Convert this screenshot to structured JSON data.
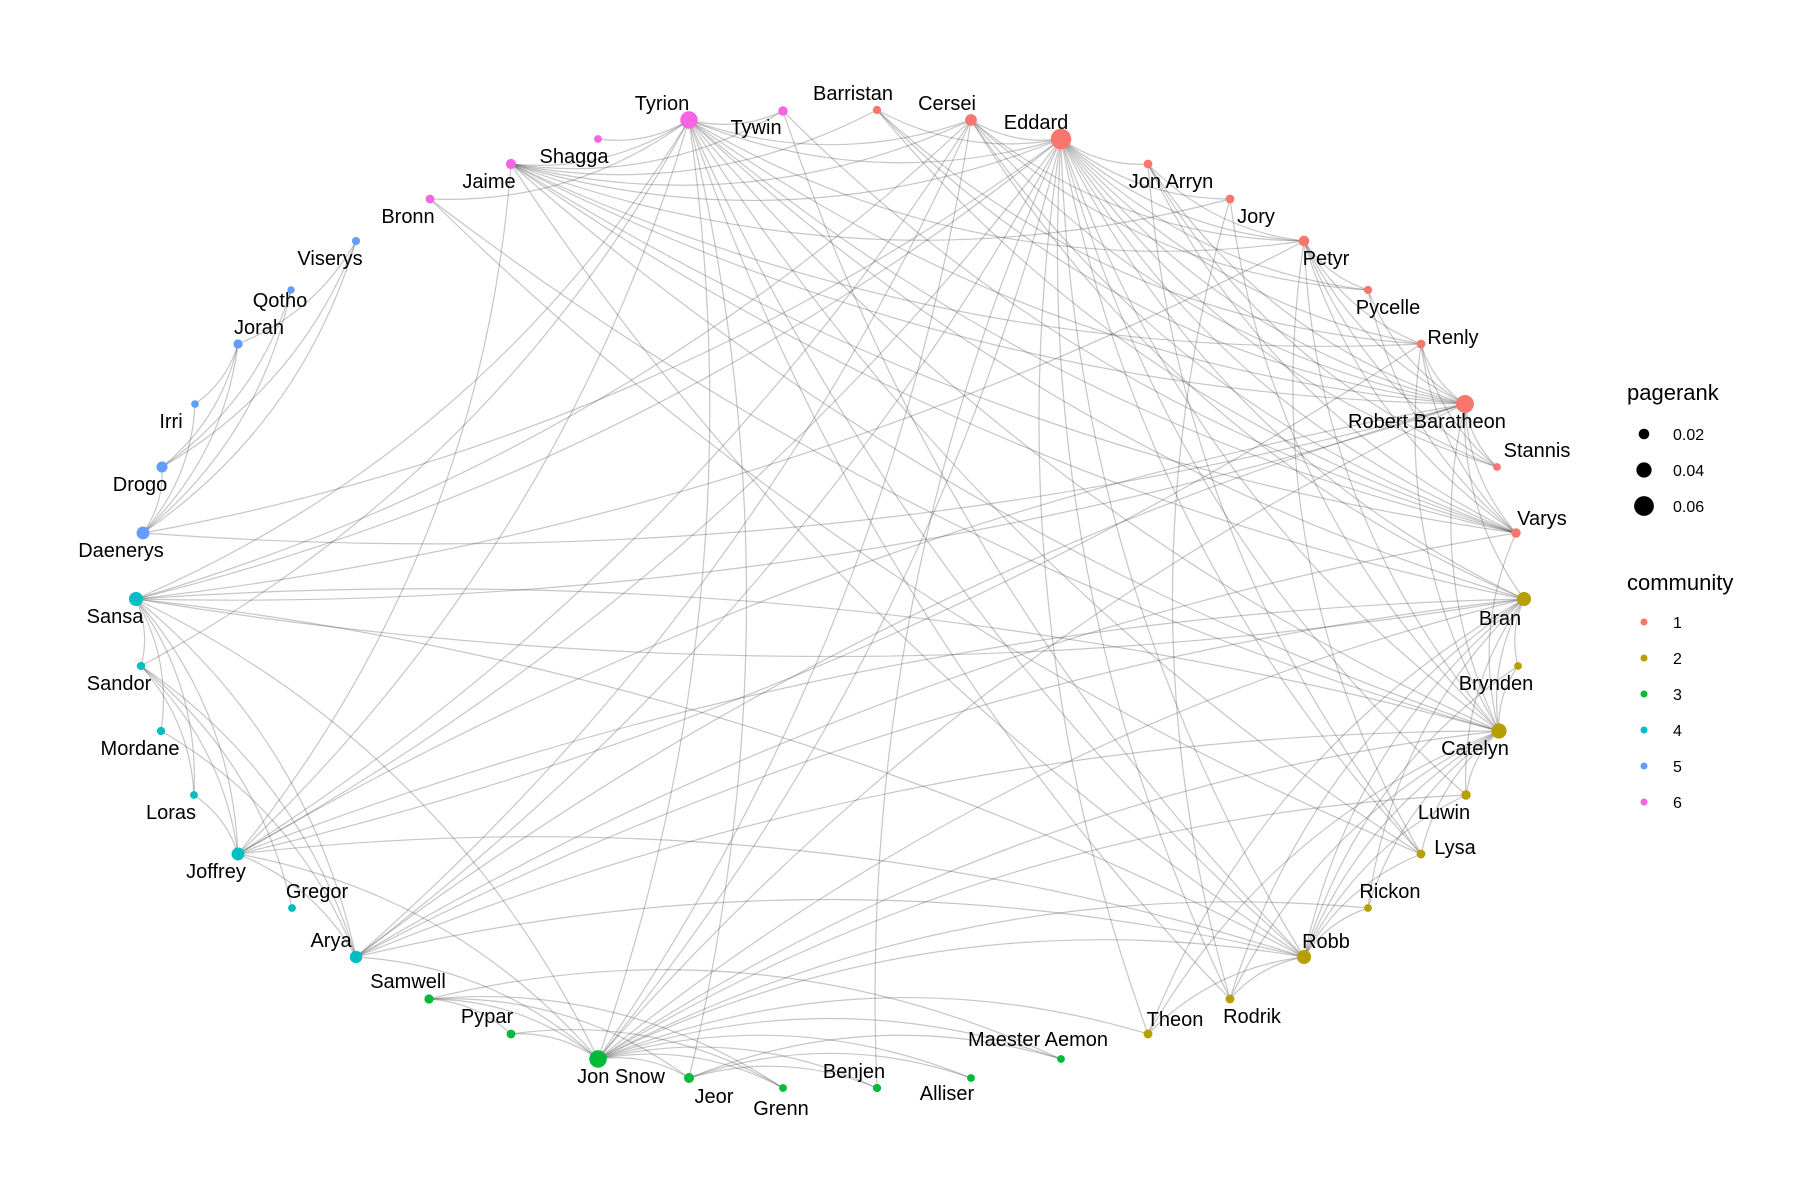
{
  "legend": {
    "pagerank_title": "pagerank",
    "pagerank_entries": [
      {
        "label": "0.02",
        "value": 0.02
      },
      {
        "label": "0.04",
        "value": 0.04
      },
      {
        "label": "0.06",
        "value": 0.06
      }
    ],
    "community_title": "community",
    "community_entries": [
      {
        "label": "1",
        "color": "#F8766D"
      },
      {
        "label": "2",
        "color": "#B79F00"
      },
      {
        "label": "3",
        "color": "#00BA38"
      },
      {
        "label": "4",
        "color": "#00BFC4"
      },
      {
        "label": "5",
        "color": "#619CFF"
      },
      {
        "label": "6",
        "color": "#F564E3"
      }
    ]
  },
  "nodes": [
    {
      "name": "Eddard",
      "community": 1,
      "pagerank": 0.063
    },
    {
      "name": "Jon Arryn",
      "community": 1,
      "pagerank": 0.012
    },
    {
      "name": "Jory",
      "community": 1,
      "pagerank": 0.012
    },
    {
      "name": "Petyr",
      "community": 1,
      "pagerank": 0.02
    },
    {
      "name": "Pycelle",
      "community": 1,
      "pagerank": 0.01
    },
    {
      "name": "Renly",
      "community": 1,
      "pagerank": 0.012
    },
    {
      "name": "Robert Baratheon",
      "community": 1,
      "pagerank": 0.052
    },
    {
      "name": "Stannis",
      "community": 1,
      "pagerank": 0.008
    },
    {
      "name": "Varys",
      "community": 1,
      "pagerank": 0.015
    },
    {
      "name": "Bran",
      "community": 2,
      "pagerank": 0.035
    },
    {
      "name": "Brynden",
      "community": 2,
      "pagerank": 0.008
    },
    {
      "name": "Catelyn",
      "community": 2,
      "pagerank": 0.04
    },
    {
      "name": "Luwin",
      "community": 2,
      "pagerank": 0.015
    },
    {
      "name": "Lysa",
      "community": 2,
      "pagerank": 0.012
    },
    {
      "name": "Rickon",
      "community": 2,
      "pagerank": 0.008
    },
    {
      "name": "Robb",
      "community": 2,
      "pagerank": 0.035
    },
    {
      "name": "Rodrik",
      "community": 2,
      "pagerank": 0.012
    },
    {
      "name": "Theon",
      "community": 2,
      "pagerank": 0.013
    },
    {
      "name": "Maester Aemon",
      "community": 3,
      "pagerank": 0.008
    },
    {
      "name": "Alliser",
      "community": 3,
      "pagerank": 0.008
    },
    {
      "name": "Benjen",
      "community": 3,
      "pagerank": 0.01
    },
    {
      "name": "Grenn",
      "community": 3,
      "pagerank": 0.008
    },
    {
      "name": "Jeor",
      "community": 3,
      "pagerank": 0.017
    },
    {
      "name": "Jon Snow",
      "community": 3,
      "pagerank": 0.05
    },
    {
      "name": "Pypar",
      "community": 3,
      "pagerank": 0.012
    },
    {
      "name": "Samwell",
      "community": 3,
      "pagerank": 0.014
    },
    {
      "name": "Arya",
      "community": 4,
      "pagerank": 0.028
    },
    {
      "name": "Gregor",
      "community": 4,
      "pagerank": 0.008
    },
    {
      "name": "Joffrey",
      "community": 4,
      "pagerank": 0.03
    },
    {
      "name": "Loras",
      "community": 4,
      "pagerank": 0.008
    },
    {
      "name": "Mordane",
      "community": 4,
      "pagerank": 0.01
    },
    {
      "name": "Sandor",
      "community": 4,
      "pagerank": 0.01
    },
    {
      "name": "Sansa",
      "community": 4,
      "pagerank": 0.035
    },
    {
      "name": "Daenerys",
      "community": 5,
      "pagerank": 0.03
    },
    {
      "name": "Drogo",
      "community": 5,
      "pagerank": 0.022
    },
    {
      "name": "Irri",
      "community": 5,
      "pagerank": 0.007
    },
    {
      "name": "Jorah",
      "community": 5,
      "pagerank": 0.014
    },
    {
      "name": "Qotho",
      "community": 5,
      "pagerank": 0.006
    },
    {
      "name": "Viserys",
      "community": 5,
      "pagerank": 0.009
    },
    {
      "name": "Bronn",
      "community": 6,
      "pagerank": 0.012
    },
    {
      "name": "Jaime",
      "community": 6,
      "pagerank": 0.018
    },
    {
      "name": "Shagga",
      "community": 6,
      "pagerank": 0.008
    },
    {
      "name": "Tyrion",
      "community": 6,
      "pagerank": 0.05
    },
    {
      "name": "Tywin",
      "community": 6,
      "pagerank": 0.015
    },
    {
      "name": "Barristan",
      "community": 1,
      "pagerank": 0.01
    },
    {
      "name": "Cersei",
      "community": 1,
      "pagerank": 0.025
    }
  ],
  "edges": [
    [
      "Eddard",
      "Robert Baratheon"
    ],
    [
      "Eddard",
      "Jon Arryn"
    ],
    [
      "Eddard",
      "Jory"
    ],
    [
      "Eddard",
      "Petyr"
    ],
    [
      "Eddard",
      "Pycelle"
    ],
    [
      "Eddard",
      "Renly"
    ],
    [
      "Eddard",
      "Varys"
    ],
    [
      "Eddard",
      "Stannis"
    ],
    [
      "Eddard",
      "Cersei"
    ],
    [
      "Eddard",
      "Barristan"
    ],
    [
      "Eddard",
      "Catelyn"
    ],
    [
      "Eddard",
      "Bran"
    ],
    [
      "Eddard",
      "Robb"
    ],
    [
      "Eddard",
      "Luwin"
    ],
    [
      "Eddard",
      "Rodrik"
    ],
    [
      "Eddard",
      "Sansa"
    ],
    [
      "Eddard",
      "Arya"
    ],
    [
      "Eddard",
      "Joffrey"
    ],
    [
      "Eddard",
      "Jon Snow"
    ],
    [
      "Eddard",
      "Benjen"
    ],
    [
      "Eddard",
      "Tyrion"
    ],
    [
      "Eddard",
      "Jaime"
    ],
    [
      "Eddard",
      "Daenerys"
    ],
    [
      "Eddard",
      "Theon"
    ],
    [
      "Eddard",
      "Lysa"
    ],
    [
      "Robert Baratheon",
      "Cersei"
    ],
    [
      "Robert Baratheon",
      "Jon Arryn"
    ],
    [
      "Robert Baratheon",
      "Renly"
    ],
    [
      "Robert Baratheon",
      "Stannis"
    ],
    [
      "Robert Baratheon",
      "Barristan"
    ],
    [
      "Robert Baratheon",
      "Varys"
    ],
    [
      "Robert Baratheon",
      "Joffrey"
    ],
    [
      "Robert Baratheon",
      "Jaime"
    ],
    [
      "Robert Baratheon",
      "Tyrion"
    ],
    [
      "Robert Baratheon",
      "Sansa"
    ],
    [
      "Robert Baratheon",
      "Arya"
    ],
    [
      "Robert Baratheon",
      "Catelyn"
    ],
    [
      "Robert Baratheon",
      "Bran"
    ],
    [
      "Robert Baratheon",
      "Petyr"
    ],
    [
      "Robert Baratheon",
      "Pycelle"
    ],
    [
      "Robert Baratheon",
      "Jon Snow"
    ],
    [
      "Cersei",
      "Joffrey"
    ],
    [
      "Cersei",
      "Jaime"
    ],
    [
      "Cersei",
      "Tyrion"
    ],
    [
      "Cersei",
      "Petyr"
    ],
    [
      "Cersei",
      "Varys"
    ],
    [
      "Cersei",
      "Sansa"
    ],
    [
      "Cersei",
      "Arya"
    ],
    [
      "Cersei",
      "Bran"
    ],
    [
      "Cersei",
      "Pycelle"
    ],
    [
      "Cersei",
      "Jon Snow"
    ],
    [
      "Tyrion",
      "Jaime"
    ],
    [
      "Tyrion",
      "Tywin"
    ],
    [
      "Tyrion",
      "Bronn"
    ],
    [
      "Tyrion",
      "Shagga"
    ],
    [
      "Tyrion",
      "Catelyn"
    ],
    [
      "Tyrion",
      "Lysa"
    ],
    [
      "Tyrion",
      "Robb"
    ],
    [
      "Tyrion",
      "Jon Snow"
    ],
    [
      "Tyrion",
      "Jeor"
    ],
    [
      "Tyrion",
      "Joffrey"
    ],
    [
      "Tyrion",
      "Sansa"
    ],
    [
      "Tyrion",
      "Bran"
    ],
    [
      "Tyrion",
      "Varys"
    ],
    [
      "Tyrion",
      "Petyr"
    ],
    [
      "Tyrion",
      "Rodrik"
    ],
    [
      "Jaime",
      "Tywin"
    ],
    [
      "Jaime",
      "Bran"
    ],
    [
      "Jaime",
      "Catelyn"
    ],
    [
      "Jaime",
      "Robb"
    ],
    [
      "Jaime",
      "Barristan"
    ],
    [
      "Jaime",
      "Varys"
    ],
    [
      "Jaime",
      "Jory"
    ],
    [
      "Jaime",
      "Renly"
    ],
    [
      "Jaime",
      "Joffrey"
    ],
    [
      "Tywin",
      "Robb"
    ],
    [
      "Tywin",
      "Varys"
    ],
    [
      "Bronn",
      "Catelyn"
    ],
    [
      "Bronn",
      "Lysa"
    ],
    [
      "Daenerys",
      "Drogo"
    ],
    [
      "Daenerys",
      "Jorah"
    ],
    [
      "Daenerys",
      "Viserys"
    ],
    [
      "Daenerys",
      "Irri"
    ],
    [
      "Daenerys",
      "Qotho"
    ],
    [
      "Daenerys",
      "Robert Baratheon"
    ],
    [
      "Drogo",
      "Jorah"
    ],
    [
      "Drogo",
      "Viserys"
    ],
    [
      "Drogo",
      "Qotho"
    ],
    [
      "Jorah",
      "Viserys"
    ],
    [
      "Jorah",
      "Irri"
    ],
    [
      "Sansa",
      "Joffrey"
    ],
    [
      "Sansa",
      "Arya"
    ],
    [
      "Sansa",
      "Sandor"
    ],
    [
      "Sansa",
      "Mordane"
    ],
    [
      "Sansa",
      "Loras"
    ],
    [
      "Sansa",
      "Catelyn"
    ],
    [
      "Sansa",
      "Bran"
    ],
    [
      "Sansa",
      "Robb"
    ],
    [
      "Sansa",
      "Petyr"
    ],
    [
      "Sansa",
      "Jon Snow"
    ],
    [
      "Sandor",
      "Joffrey"
    ],
    [
      "Sandor",
      "Arya"
    ],
    [
      "Sandor",
      "Gregor"
    ],
    [
      "Sandor",
      "Loras"
    ],
    [
      "Sandor",
      "Tyrion"
    ],
    [
      "Arya",
      "Joffrey"
    ],
    [
      "Arya",
      "Mordane"
    ],
    [
      "Arya",
      "Jon Snow"
    ],
    [
      "Arya",
      "Bran"
    ],
    [
      "Arya",
      "Robb"
    ],
    [
      "Arya",
      "Catelyn"
    ],
    [
      "Arya",
      "Varys"
    ],
    [
      "Joffrey",
      "Bran"
    ],
    [
      "Joffrey",
      "Loras"
    ],
    [
      "Joffrey",
      "Renly"
    ],
    [
      "Joffrey",
      "Jon Snow"
    ],
    [
      "Joffrey",
      "Robb"
    ],
    [
      "Jon Snow",
      "Samwell"
    ],
    [
      "Jon Snow",
      "Pypar"
    ],
    [
      "Jon Snow",
      "Grenn"
    ],
    [
      "Jon Snow",
      "Jeor"
    ],
    [
      "Jon Snow",
      "Benjen"
    ],
    [
      "Jon Snow",
      "Alliser"
    ],
    [
      "Jon Snow",
      "Maester Aemon"
    ],
    [
      "Jon Snow",
      "Bran"
    ],
    [
      "Jon Snow",
      "Robb"
    ],
    [
      "Jon Snow",
      "Catelyn"
    ],
    [
      "Jon Snow",
      "Theon"
    ],
    [
      "Jon Snow",
      "Rickon"
    ],
    [
      "Jon Snow",
      "Luwin"
    ],
    [
      "Samwell",
      "Pypar"
    ],
    [
      "Samwell",
      "Grenn"
    ],
    [
      "Samwell",
      "Jeor"
    ],
    [
      "Samwell",
      "Maester Aemon"
    ],
    [
      "Pypar",
      "Grenn"
    ],
    [
      "Jeor",
      "Benjen"
    ],
    [
      "Jeor",
      "Maester Aemon"
    ],
    [
      "Jeor",
      "Alliser"
    ],
    [
      "Catelyn",
      "Robb"
    ],
    [
      "Catelyn",
      "Bran"
    ],
    [
      "Catelyn",
      "Brynden"
    ],
    [
      "Catelyn",
      "Luwin"
    ],
    [
      "Catelyn",
      "Lysa"
    ],
    [
      "Catelyn",
      "Rodrik"
    ],
    [
      "Catelyn",
      "Rickon"
    ],
    [
      "Catelyn",
      "Theon"
    ],
    [
      "Catelyn",
      "Petyr"
    ],
    [
      "Catelyn",
      "Renly"
    ],
    [
      "Catelyn",
      "Varys"
    ],
    [
      "Robb",
      "Bran"
    ],
    [
      "Robb",
      "Theon"
    ],
    [
      "Robb",
      "Luwin"
    ],
    [
      "Robb",
      "Rodrik"
    ],
    [
      "Robb",
      "Rickon"
    ],
    [
      "Robb",
      "Brynden"
    ],
    [
      "Robb",
      "Lysa"
    ],
    [
      "Bran",
      "Luwin"
    ],
    [
      "Bran",
      "Rodrik"
    ],
    [
      "Bran",
      "Rickon"
    ],
    [
      "Bran",
      "Theon"
    ],
    [
      "Bran",
      "Brynden"
    ],
    [
      "Petyr",
      "Varys"
    ],
    [
      "Petyr",
      "Renly"
    ],
    [
      "Petyr",
      "Pycelle"
    ],
    [
      "Petyr",
      "Jon Arryn"
    ],
    [
      "Petyr",
      "Lysa"
    ],
    [
      "Petyr",
      "Stannis"
    ],
    [
      "Jon Arryn",
      "Lysa"
    ],
    [
      "Jon Arryn",
      "Stannis"
    ],
    [
      "Jon Arryn",
      "Varys"
    ],
    [
      "Jory",
      "Rodrik"
    ],
    [
      "Jory",
      "Catelyn"
    ],
    [
      "Renly",
      "Varys"
    ],
    [
      "Renly",
      "Stannis"
    ],
    [
      "Pycelle",
      "Varys"
    ],
    [
      "Barristan",
      "Varys"
    ],
    [
      "Barristan",
      "Renly"
    ]
  ]
}
